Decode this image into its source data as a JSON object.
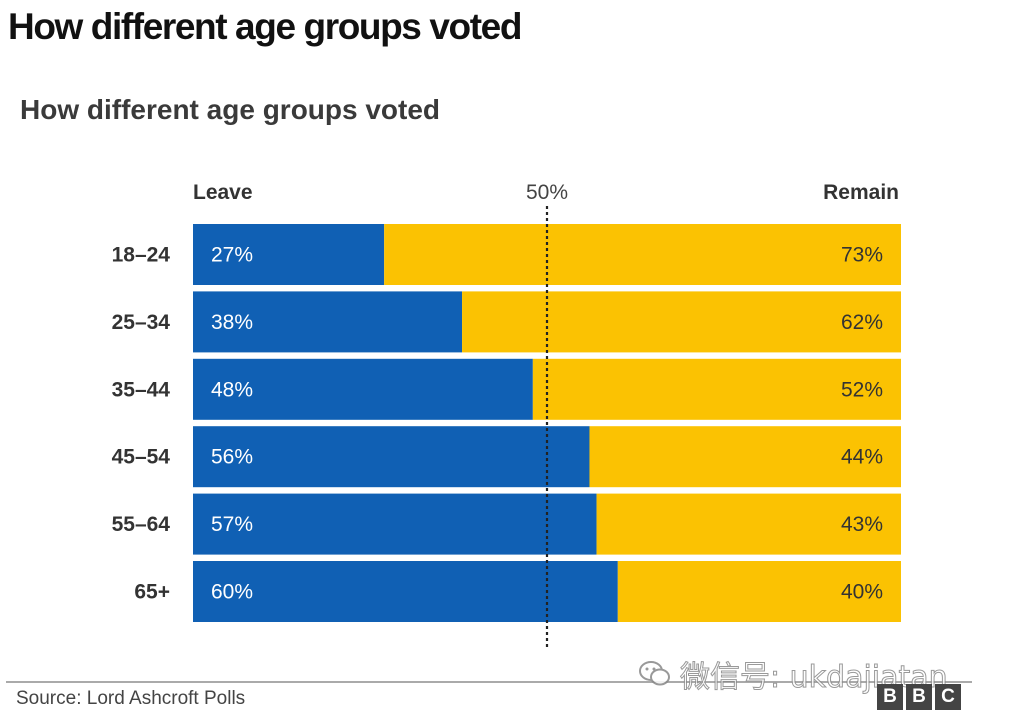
{
  "page": {
    "heading": "How different age groups voted"
  },
  "chart_data": {
    "type": "bar",
    "orientation": "horizontal",
    "stacked": true,
    "title": "How different age groups voted",
    "left_label": "Leave",
    "right_label": "Remain",
    "midline_label": "50%",
    "midline_value": 50,
    "xlim": [
      0,
      100
    ],
    "categories": [
      "18–24",
      "25–34",
      "35–44",
      "45–54",
      "55–64",
      "65+"
    ],
    "series": [
      {
        "name": "Leave",
        "color": "#1060b4",
        "values": [
          27,
          38,
          48,
          56,
          57,
          60
        ]
      },
      {
        "name": "Remain",
        "color": "#fbc202",
        "values": [
          73,
          62,
          52,
          44,
          43,
          40
        ]
      }
    ],
    "value_suffix": "%"
  },
  "footer": {
    "source": "Source: Lord Ashcroft Polls",
    "watermark": "微信号: ukdajiatan",
    "logo_letters": [
      "B",
      "B",
      "C"
    ]
  }
}
